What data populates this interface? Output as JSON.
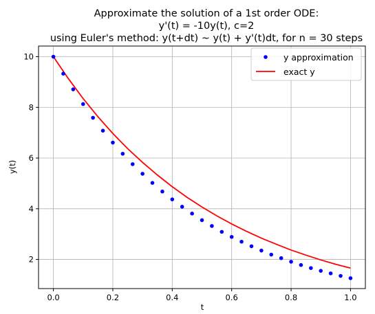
{
  "chart_data": {
    "type": "line",
    "title_lines": [
      "Approximate the solution of a 1st order ODE:",
      "y'(t) = -10y(t), c=2",
      "using Euler's method: y(t+dt) ~ y(t) + y'(t)dt, for n = 30 steps"
    ],
    "xlabel": "t",
    "ylabel": "y(t)",
    "xlim": [
      -0.05,
      1.05
    ],
    "ylim": [
      0.85,
      10.42
    ],
    "xticks": [
      0.0,
      0.2,
      0.4,
      0.6,
      0.8,
      1.0
    ],
    "xtick_labels": [
      "0.0",
      "0.2",
      "0.4",
      "0.6",
      "0.8",
      "1.0"
    ],
    "yticks": [
      2,
      4,
      6,
      8,
      10
    ],
    "ytick_labels": [
      "2",
      "4",
      "6",
      "8",
      "10"
    ],
    "grid": true,
    "legend_position": "top-right",
    "series": [
      {
        "name": "y approximation",
        "style": "markers",
        "color": "#0000ff",
        "x": [
          0.0,
          0.0333,
          0.0667,
          0.1,
          0.1333,
          0.1667,
          0.2,
          0.2333,
          0.2667,
          0.3,
          0.3333,
          0.3667,
          0.4,
          0.4333,
          0.4667,
          0.5,
          0.5333,
          0.5667,
          0.6,
          0.6333,
          0.6667,
          0.7,
          0.7333,
          0.7667,
          0.8,
          0.8333,
          0.8667,
          0.9,
          0.9333,
          0.9667,
          1.0
        ],
        "y": [
          10.0,
          9.33,
          8.71,
          8.13,
          7.59,
          7.08,
          6.61,
          6.17,
          5.76,
          5.38,
          5.02,
          4.68,
          4.37,
          4.08,
          3.81,
          3.55,
          3.32,
          3.09,
          2.89,
          2.7,
          2.52,
          2.35,
          2.19,
          2.05,
          1.91,
          1.78,
          1.66,
          1.55,
          1.45,
          1.35,
          1.26
        ]
      },
      {
        "name": "exact y",
        "style": "line",
        "color": "#ff0000",
        "x": [
          0.0,
          0.05,
          0.1,
          0.15,
          0.2,
          0.25,
          0.3,
          0.35,
          0.4,
          0.45,
          0.5,
          0.55,
          0.6,
          0.65,
          0.7,
          0.75,
          0.8,
          0.85,
          0.9,
          0.95,
          1.0
        ],
        "y": [
          10.0,
          9.14,
          8.35,
          7.63,
          6.97,
          6.37,
          5.83,
          5.33,
          4.87,
          4.45,
          4.07,
          3.72,
          3.4,
          3.11,
          2.84,
          2.6,
          2.37,
          2.17,
          1.98,
          1.81,
          1.66
        ]
      }
    ]
  }
}
